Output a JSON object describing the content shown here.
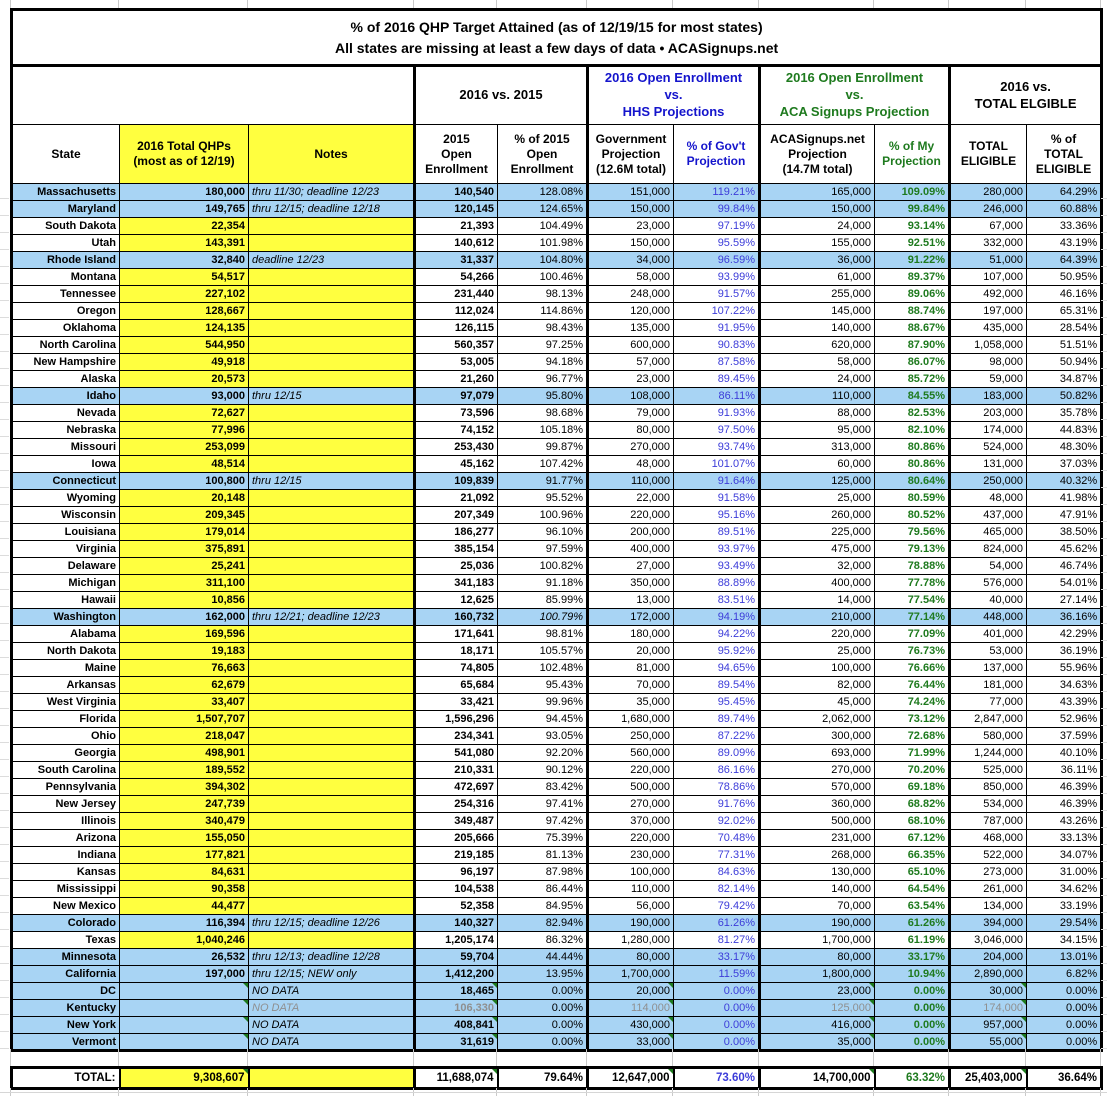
{
  "title": {
    "line1": "% of 2016 QHP Target Attained (as of 12/19/15 for most states)",
    "line2": "All states are missing at least a few days of data • ACASignups.net"
  },
  "colors": {
    "highlight_row": "#a8d4f4",
    "yellow_cell": "#ffff3f",
    "hhs_blue_header": "#1414cc",
    "gov_pct_blue": "#3c3cd9",
    "aca_green": "#1e7a1e",
    "comment_flag_green": "#1e7a1e"
  },
  "group_headers": [
    {
      "label": "2016 vs. 2015",
      "color": "#000000"
    },
    {
      "label": "2016 Open Enrollment\nvs.\nHHS Projections",
      "color": "#1414cc"
    },
    {
      "label": "2016 Open Enrollment\nvs.\nACA Signups Projection",
      "color": "#1e7a1e"
    },
    {
      "label": "2016 vs.\nTOTAL ELGIBLE",
      "color": "#000000"
    }
  ],
  "columns": [
    {
      "key": "state",
      "label": "State"
    },
    {
      "key": "qhps",
      "label": "2016 Total QHPs\n(most as of 12/19)"
    },
    {
      "key": "notes",
      "label": "Notes"
    },
    {
      "key": "oe2015",
      "label": "2015\nOpen\nEnrollment"
    },
    {
      "key": "pct2015",
      "label": "% of 2015\nOpen\nEnrollment"
    },
    {
      "key": "gov_proj",
      "label": "Government\nProjection\n(12.6M total)"
    },
    {
      "key": "pct_gov",
      "label": "% of Gov't\nProjection"
    },
    {
      "key": "aca_proj",
      "label": "ACASignups.net\nProjection\n(14.7M total)"
    },
    {
      "key": "pct_aca",
      "label": "% of My\nProjection"
    },
    {
      "key": "total_elig",
      "label": "TOTAL\nELIGIBLE"
    },
    {
      "key": "pct_elig",
      "label": "% of\nTOTAL\nELIGIBLE"
    }
  ],
  "chart_data": {
    "type": "table",
    "rows": [
      {
        "state": "Massachusetts",
        "qhps": "180,000",
        "notes": "thru 11/30; deadline 12/23",
        "oe2015": "140,540",
        "pct2015": "128.08%",
        "gov_proj": "151,000",
        "pct_gov": "119.21%",
        "aca_proj": "165,000",
        "pct_aca": "109.09%",
        "total_elig": "280,000",
        "pct_elig": "64.29%",
        "highlight": true
      },
      {
        "state": "Maryland",
        "qhps": "149,765",
        "notes": "thru 12/15; deadline 12/18",
        "oe2015": "120,145",
        "pct2015": "124.65%",
        "gov_proj": "150,000",
        "pct_gov": "99.84%",
        "aca_proj": "150,000",
        "pct_aca": "99.84%",
        "total_elig": "246,000",
        "pct_elig": "60.88%",
        "highlight": true
      },
      {
        "state": "South Dakota",
        "qhps": "22,354",
        "notes": "",
        "oe2015": "21,393",
        "pct2015": "104.49%",
        "gov_proj": "23,000",
        "pct_gov": "97.19%",
        "aca_proj": "24,000",
        "pct_aca": "93.14%",
        "total_elig": "67,000",
        "pct_elig": "33.36%"
      },
      {
        "state": "Utah",
        "qhps": "143,391",
        "notes": "",
        "oe2015": "140,612",
        "pct2015": "101.98%",
        "gov_proj": "150,000",
        "pct_gov": "95.59%",
        "aca_proj": "155,000",
        "pct_aca": "92.51%",
        "total_elig": "332,000",
        "pct_elig": "43.19%"
      },
      {
        "state": "Rhode Island",
        "qhps": "32,840",
        "notes": "deadline 12/23",
        "oe2015": "31,337",
        "pct2015": "104.80%",
        "gov_proj": "34,000",
        "pct_gov": "96.59%",
        "aca_proj": "36,000",
        "pct_aca": "91.22%",
        "total_elig": "51,000",
        "pct_elig": "64.39%",
        "highlight": true
      },
      {
        "state": "Montana",
        "qhps": "54,517",
        "notes": "",
        "oe2015": "54,266",
        "pct2015": "100.46%",
        "gov_proj": "58,000",
        "pct_gov": "93.99%",
        "aca_proj": "61,000",
        "pct_aca": "89.37%",
        "total_elig": "107,000",
        "pct_elig": "50.95%"
      },
      {
        "state": "Tennessee",
        "qhps": "227,102",
        "notes": "",
        "oe2015": "231,440",
        "pct2015": "98.13%",
        "gov_proj": "248,000",
        "pct_gov": "91.57%",
        "aca_proj": "255,000",
        "pct_aca": "89.06%",
        "total_elig": "492,000",
        "pct_elig": "46.16%"
      },
      {
        "state": "Oregon",
        "qhps": "128,667",
        "notes": "",
        "oe2015": "112,024",
        "pct2015": "114.86%",
        "gov_proj": "120,000",
        "pct_gov": "107.22%",
        "aca_proj": "145,000",
        "pct_aca": "88.74%",
        "total_elig": "197,000",
        "pct_elig": "65.31%"
      },
      {
        "state": "Oklahoma",
        "qhps": "124,135",
        "notes": "",
        "oe2015": "126,115",
        "pct2015": "98.43%",
        "gov_proj": "135,000",
        "pct_gov": "91.95%",
        "aca_proj": "140,000",
        "pct_aca": "88.67%",
        "total_elig": "435,000",
        "pct_elig": "28.54%"
      },
      {
        "state": "North Carolina",
        "qhps": "544,950",
        "notes": "",
        "oe2015": "560,357",
        "pct2015": "97.25%",
        "gov_proj": "600,000",
        "pct_gov": "90.83%",
        "aca_proj": "620,000",
        "pct_aca": "87.90%",
        "total_elig": "1,058,000",
        "pct_elig": "51.51%"
      },
      {
        "state": "New Hampshire",
        "qhps": "49,918",
        "notes": "",
        "oe2015": "53,005",
        "pct2015": "94.18%",
        "gov_proj": "57,000",
        "pct_gov": "87.58%",
        "aca_proj": "58,000",
        "pct_aca": "86.07%",
        "total_elig": "98,000",
        "pct_elig": "50.94%"
      },
      {
        "state": "Alaska",
        "qhps": "20,573",
        "notes": "",
        "oe2015": "21,260",
        "pct2015": "96.77%",
        "gov_proj": "23,000",
        "pct_gov": "89.45%",
        "aca_proj": "24,000",
        "pct_aca": "85.72%",
        "total_elig": "59,000",
        "pct_elig": "34.87%"
      },
      {
        "state": "Idaho",
        "qhps": "93,000",
        "notes": "thru 12/15",
        "oe2015": "97,079",
        "pct2015": "95.80%",
        "gov_proj": "108,000",
        "pct_gov": "86.11%",
        "aca_proj": "110,000",
        "pct_aca": "84.55%",
        "total_elig": "183,000",
        "pct_elig": "50.82%",
        "highlight": true
      },
      {
        "state": "Nevada",
        "qhps": "72,627",
        "notes": "",
        "oe2015": "73,596",
        "pct2015": "98.68%",
        "gov_proj": "79,000",
        "pct_gov": "91.93%",
        "aca_proj": "88,000",
        "pct_aca": "82.53%",
        "total_elig": "203,000",
        "pct_elig": "35.78%"
      },
      {
        "state": "Nebraska",
        "qhps": "77,996",
        "notes": "",
        "oe2015": "74,152",
        "pct2015": "105.18%",
        "gov_proj": "80,000",
        "pct_gov": "97.50%",
        "aca_proj": "95,000",
        "pct_aca": "82.10%",
        "total_elig": "174,000",
        "pct_elig": "44.83%"
      },
      {
        "state": "Missouri",
        "qhps": "253,099",
        "notes": "",
        "oe2015": "253,430",
        "pct2015": "99.87%",
        "gov_proj": "270,000",
        "pct_gov": "93.74%",
        "aca_proj": "313,000",
        "pct_aca": "80.86%",
        "total_elig": "524,000",
        "pct_elig": "48.30%"
      },
      {
        "state": "Iowa",
        "qhps": "48,514",
        "notes": "",
        "oe2015": "45,162",
        "pct2015": "107.42%",
        "gov_proj": "48,000",
        "pct_gov": "101.07%",
        "aca_proj": "60,000",
        "pct_aca": "80.86%",
        "total_elig": "131,000",
        "pct_elig": "37.03%"
      },
      {
        "state": "Connecticut",
        "qhps": "100,800",
        "notes": "thru 12/15",
        "oe2015": "109,839",
        "pct2015": "91.77%",
        "gov_proj": "110,000",
        "pct_gov": "91.64%",
        "aca_proj": "125,000",
        "pct_aca": "80.64%",
        "total_elig": "250,000",
        "pct_elig": "40.32%",
        "highlight": true
      },
      {
        "state": "Wyoming",
        "qhps": "20,148",
        "notes": "",
        "oe2015": "21,092",
        "pct2015": "95.52%",
        "gov_proj": "22,000",
        "pct_gov": "91.58%",
        "aca_proj": "25,000",
        "pct_aca": "80.59%",
        "total_elig": "48,000",
        "pct_elig": "41.98%"
      },
      {
        "state": "Wisconsin",
        "qhps": "209,345",
        "notes": "",
        "oe2015": "207,349",
        "pct2015": "100.96%",
        "gov_proj": "220,000",
        "pct_gov": "95.16%",
        "aca_proj": "260,000",
        "pct_aca": "80.52%",
        "total_elig": "437,000",
        "pct_elig": "47.91%"
      },
      {
        "state": "Louisiana",
        "qhps": "179,014",
        "notes": "",
        "oe2015": "186,277",
        "pct2015": "96.10%",
        "gov_proj": "200,000",
        "pct_gov": "89.51%",
        "aca_proj": "225,000",
        "pct_aca": "79.56%",
        "total_elig": "465,000",
        "pct_elig": "38.50%"
      },
      {
        "state": "Virginia",
        "qhps": "375,891",
        "notes": "",
        "oe2015": "385,154",
        "pct2015": "97.59%",
        "gov_proj": "400,000",
        "pct_gov": "93.97%",
        "aca_proj": "475,000",
        "pct_aca": "79.13%",
        "total_elig": "824,000",
        "pct_elig": "45.62%"
      },
      {
        "state": "Delaware",
        "qhps": "25,241",
        "notes": "",
        "oe2015": "25,036",
        "pct2015": "100.82%",
        "gov_proj": "27,000",
        "pct_gov": "93.49%",
        "aca_proj": "32,000",
        "pct_aca": "78.88%",
        "total_elig": "54,000",
        "pct_elig": "46.74%"
      },
      {
        "state": "Michigan",
        "qhps": "311,100",
        "notes": "",
        "oe2015": "341,183",
        "pct2015": "91.18%",
        "gov_proj": "350,000",
        "pct_gov": "88.89%",
        "aca_proj": "400,000",
        "pct_aca": "77.78%",
        "total_elig": "576,000",
        "pct_elig": "54.01%"
      },
      {
        "state": "Hawaii",
        "qhps": "10,856",
        "notes": "",
        "oe2015": "12,625",
        "pct2015": "85.99%",
        "gov_proj": "13,000",
        "pct_gov": "83.51%",
        "aca_proj": "14,000",
        "pct_aca": "77.54%",
        "total_elig": "40,000",
        "pct_elig": "27.14%"
      },
      {
        "state": "Washington",
        "qhps": "162,000",
        "notes": "thru 12/21; deadline 12/23",
        "oe2015": "160,732",
        "pct2015": "100.79%",
        "gov_proj": "172,000",
        "pct_gov": "94.19%",
        "aca_proj": "210,000",
        "pct_aca": "77.14%",
        "total_elig": "448,000",
        "pct_elig": "36.16%",
        "highlight": true,
        "italic_pct2015": true
      },
      {
        "state": "Alabama",
        "qhps": "169,596",
        "notes": "",
        "oe2015": "171,641",
        "pct2015": "98.81%",
        "gov_proj": "180,000",
        "pct_gov": "94.22%",
        "aca_proj": "220,000",
        "pct_aca": "77.09%",
        "total_elig": "401,000",
        "pct_elig": "42.29%"
      },
      {
        "state": "North Dakota",
        "qhps": "19,183",
        "notes": "",
        "oe2015": "18,171",
        "pct2015": "105.57%",
        "gov_proj": "20,000",
        "pct_gov": "95.92%",
        "aca_proj": "25,000",
        "pct_aca": "76.73%",
        "total_elig": "53,000",
        "pct_elig": "36.19%"
      },
      {
        "state": "Maine",
        "qhps": "76,663",
        "notes": "",
        "oe2015": "74,805",
        "pct2015": "102.48%",
        "gov_proj": "81,000",
        "pct_gov": "94.65%",
        "aca_proj": "100,000",
        "pct_aca": "76.66%",
        "total_elig": "137,000",
        "pct_elig": "55.96%"
      },
      {
        "state": "Arkansas",
        "qhps": "62,679",
        "notes": "",
        "oe2015": "65,684",
        "pct2015": "95.43%",
        "gov_proj": "70,000",
        "pct_gov": "89.54%",
        "aca_proj": "82,000",
        "pct_aca": "76.44%",
        "total_elig": "181,000",
        "pct_elig": "34.63%"
      },
      {
        "state": "West Virginia",
        "qhps": "33,407",
        "notes": "",
        "oe2015": "33,421",
        "pct2015": "99.96%",
        "gov_proj": "35,000",
        "pct_gov": "95.45%",
        "aca_proj": "45,000",
        "pct_aca": "74.24%",
        "total_elig": "77,000",
        "pct_elig": "43.39%"
      },
      {
        "state": "Florida",
        "qhps": "1,507,707",
        "notes": "",
        "oe2015": "1,596,296",
        "pct2015": "94.45%",
        "gov_proj": "1,680,000",
        "pct_gov": "89.74%",
        "aca_proj": "2,062,000",
        "pct_aca": "73.12%",
        "total_elig": "2,847,000",
        "pct_elig": "52.96%"
      },
      {
        "state": "Ohio",
        "qhps": "218,047",
        "notes": "",
        "oe2015": "234,341",
        "pct2015": "93.05%",
        "gov_proj": "250,000",
        "pct_gov": "87.22%",
        "aca_proj": "300,000",
        "pct_aca": "72.68%",
        "total_elig": "580,000",
        "pct_elig": "37.59%"
      },
      {
        "state": "Georgia",
        "qhps": "498,901",
        "notes": "",
        "oe2015": "541,080",
        "pct2015": "92.20%",
        "gov_proj": "560,000",
        "pct_gov": "89.09%",
        "aca_proj": "693,000",
        "pct_aca": "71.99%",
        "total_elig": "1,244,000",
        "pct_elig": "40.10%"
      },
      {
        "state": "South Carolina",
        "qhps": "189,552",
        "notes": "",
        "oe2015": "210,331",
        "pct2015": "90.12%",
        "gov_proj": "220,000",
        "pct_gov": "86.16%",
        "aca_proj": "270,000",
        "pct_aca": "70.20%",
        "total_elig": "525,000",
        "pct_elig": "36.11%"
      },
      {
        "state": "Pennsylvania",
        "qhps": "394,302",
        "notes": "",
        "oe2015": "472,697",
        "pct2015": "83.42%",
        "gov_proj": "500,000",
        "pct_gov": "78.86%",
        "aca_proj": "570,000",
        "pct_aca": "69.18%",
        "total_elig": "850,000",
        "pct_elig": "46.39%"
      },
      {
        "state": "New Jersey",
        "qhps": "247,739",
        "notes": "",
        "oe2015": "254,316",
        "pct2015": "97.41%",
        "gov_proj": "270,000",
        "pct_gov": "91.76%",
        "aca_proj": "360,000",
        "pct_aca": "68.82%",
        "total_elig": "534,000",
        "pct_elig": "46.39%"
      },
      {
        "state": "Illinois",
        "qhps": "340,479",
        "notes": "",
        "oe2015": "349,487",
        "pct2015": "97.42%",
        "gov_proj": "370,000",
        "pct_gov": "92.02%",
        "aca_proj": "500,000",
        "pct_aca": "68.10%",
        "total_elig": "787,000",
        "pct_elig": "43.26%"
      },
      {
        "state": "Arizona",
        "qhps": "155,050",
        "notes": "",
        "oe2015": "205,666",
        "pct2015": "75.39%",
        "gov_proj": "220,000",
        "pct_gov": "70.48%",
        "aca_proj": "231,000",
        "pct_aca": "67.12%",
        "total_elig": "468,000",
        "pct_elig": "33.13%"
      },
      {
        "state": "Indiana",
        "qhps": "177,821",
        "notes": "",
        "oe2015": "219,185",
        "pct2015": "81.13%",
        "gov_proj": "230,000",
        "pct_gov": "77.31%",
        "aca_proj": "268,000",
        "pct_aca": "66.35%",
        "total_elig": "522,000",
        "pct_elig": "34.07%"
      },
      {
        "state": "Kansas",
        "qhps": "84,631",
        "notes": "",
        "oe2015": "96,197",
        "pct2015": "87.98%",
        "gov_proj": "100,000",
        "pct_gov": "84.63%",
        "aca_proj": "130,000",
        "pct_aca": "65.10%",
        "total_elig": "273,000",
        "pct_elig": "31.00%"
      },
      {
        "state": "Mississippi",
        "qhps": "90,358",
        "notes": "",
        "oe2015": "104,538",
        "pct2015": "86.44%",
        "gov_proj": "110,000",
        "pct_gov": "82.14%",
        "aca_proj": "140,000",
        "pct_aca": "64.54%",
        "total_elig": "261,000",
        "pct_elig": "34.62%"
      },
      {
        "state": "New Mexico",
        "qhps": "44,477",
        "notes": "",
        "oe2015": "52,358",
        "pct2015": "84.95%",
        "gov_proj": "56,000",
        "pct_gov": "79.42%",
        "aca_proj": "70,000",
        "pct_aca": "63.54%",
        "total_elig": "134,000",
        "pct_elig": "33.19%"
      },
      {
        "state": "Colorado",
        "qhps": "116,394",
        "notes": "thru 12/15; deadline 12/26",
        "oe2015": "140,327",
        "pct2015": "82.94%",
        "gov_proj": "190,000",
        "pct_gov": "61.26%",
        "aca_proj": "190,000",
        "pct_aca": "61.26%",
        "total_elig": "394,000",
        "pct_elig": "29.54%",
        "highlight": true
      },
      {
        "state": "Texas",
        "qhps": "1,040,246",
        "notes": "",
        "oe2015": "1,205,174",
        "pct2015": "86.32%",
        "gov_proj": "1,280,000",
        "pct_gov": "81.27%",
        "aca_proj": "1,700,000",
        "pct_aca": "61.19%",
        "total_elig": "3,046,000",
        "pct_elig": "34.15%"
      },
      {
        "state": "Minnesota",
        "qhps": "26,532",
        "notes": "thru 12/13; deadline 12/28",
        "oe2015": "59,704",
        "pct2015": "44.44%",
        "gov_proj": "80,000",
        "pct_gov": "33.17%",
        "aca_proj": "80,000",
        "pct_aca": "33.17%",
        "total_elig": "204,000",
        "pct_elig": "13.01%",
        "highlight": true
      },
      {
        "state": "California",
        "qhps": "197,000",
        "notes": "thru 12/15; NEW only",
        "oe2015": "1,412,200",
        "pct2015": "13.95%",
        "gov_proj": "1,700,000",
        "pct_gov": "11.59%",
        "aca_proj": "1,800,000",
        "pct_aca": "10.94%",
        "total_elig": "2,890,000",
        "pct_elig": "6.82%",
        "highlight": true
      },
      {
        "state": "DC",
        "qhps": "",
        "notes": "NO DATA",
        "oe2015": "18,465",
        "pct2015": "0.00%",
        "gov_proj": "20,000",
        "pct_gov": "0.00%",
        "aca_proj": "23,000",
        "pct_aca": "0.00%",
        "total_elig": "30,000",
        "pct_elig": "0.00%",
        "highlight": true,
        "no_data": true
      },
      {
        "state": "Kentucky",
        "qhps": "",
        "notes": "NO DATA",
        "oe2015": "106,330",
        "pct2015": "0.00%",
        "gov_proj": "114,000",
        "pct_gov": "0.00%",
        "aca_proj": "125,000",
        "pct_aca": "0.00%",
        "total_elig": "174,000",
        "pct_elig": "0.00%",
        "highlight": true,
        "no_data": true,
        "muted": true
      },
      {
        "state": "New York",
        "qhps": "",
        "notes": "NO DATA",
        "oe2015": "408,841",
        "pct2015": "0.00%",
        "gov_proj": "430,000",
        "pct_gov": "0.00%",
        "aca_proj": "416,000",
        "pct_aca": "0.00%",
        "total_elig": "957,000",
        "pct_elig": "0.00%",
        "highlight": true,
        "no_data": true
      },
      {
        "state": "Vermont",
        "qhps": "",
        "notes": "NO DATA",
        "oe2015": "31,619",
        "pct2015": "0.00%",
        "gov_proj": "33,000",
        "pct_gov": "0.00%",
        "aca_proj": "35,000",
        "pct_aca": "0.00%",
        "total_elig": "55,000",
        "pct_elig": "0.00%",
        "highlight": true,
        "no_data": true
      }
    ],
    "total": {
      "state": "TOTAL:",
      "qhps": "9,308,607",
      "notes": "",
      "oe2015": "11,688,074",
      "pct2015": "79.64%",
      "gov_proj": "12,647,000",
      "pct_gov": "73.60%",
      "aca_proj": "14,700,000",
      "pct_aca": "63.32%",
      "total_elig": "25,403,000",
      "pct_elig": "36.64%"
    }
  }
}
